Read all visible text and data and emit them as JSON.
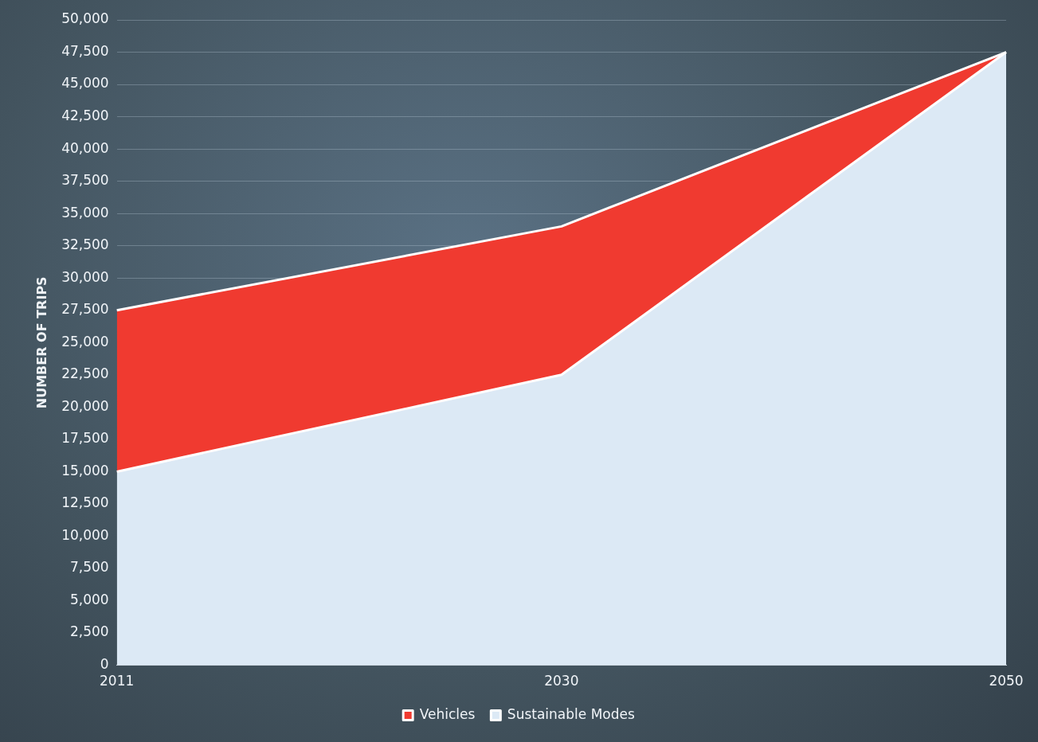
{
  "chart_data": {
    "type": "area",
    "stacked": true,
    "ylabel": "NUMBER OF TRIPS",
    "categories": [
      "2011",
      "2030",
      "2050"
    ],
    "series": [
      {
        "name": "Sustainable Modes",
        "color": "#dce9f5",
        "values": [
          15000,
          22500,
          47500
        ]
      },
      {
        "name": "Vehicles",
        "color": "#f03a30",
        "values": [
          12500,
          11500,
          0
        ]
      }
    ],
    "ylim": [
      0,
      50000
    ],
    "yticks": [
      {
        "value": 0,
        "label": "0"
      },
      {
        "value": 2500,
        "label": "2,500"
      },
      {
        "value": 5000,
        "label": "5,000"
      },
      {
        "value": 7500,
        "label": "7,500"
      },
      {
        "value": 10000,
        "label": "10,000"
      },
      {
        "value": 12500,
        "label": "12,500"
      },
      {
        "value": 15000,
        "label": "15,000"
      },
      {
        "value": 17500,
        "label": "17,500"
      },
      {
        "value": 20000,
        "label": "20,000"
      },
      {
        "value": 22500,
        "label": "22,500"
      },
      {
        "value": 25000,
        "label": "25,000"
      },
      {
        "value": 27500,
        "label": "27,500"
      },
      {
        "value": 30000,
        "label": "30,000"
      },
      {
        "value": 32500,
        "label": "32,500"
      },
      {
        "value": 35000,
        "label": "35,000"
      },
      {
        "value": 37500,
        "label": "37,500"
      },
      {
        "value": 40000,
        "label": "40,000"
      },
      {
        "value": 42500,
        "label": "42,500"
      },
      {
        "value": 45000,
        "label": "45,000"
      },
      {
        "value": 47500,
        "label": "47,500"
      },
      {
        "value": 50000,
        "label": "50,000"
      }
    ],
    "grid": "y",
    "legend": "bottom"
  }
}
